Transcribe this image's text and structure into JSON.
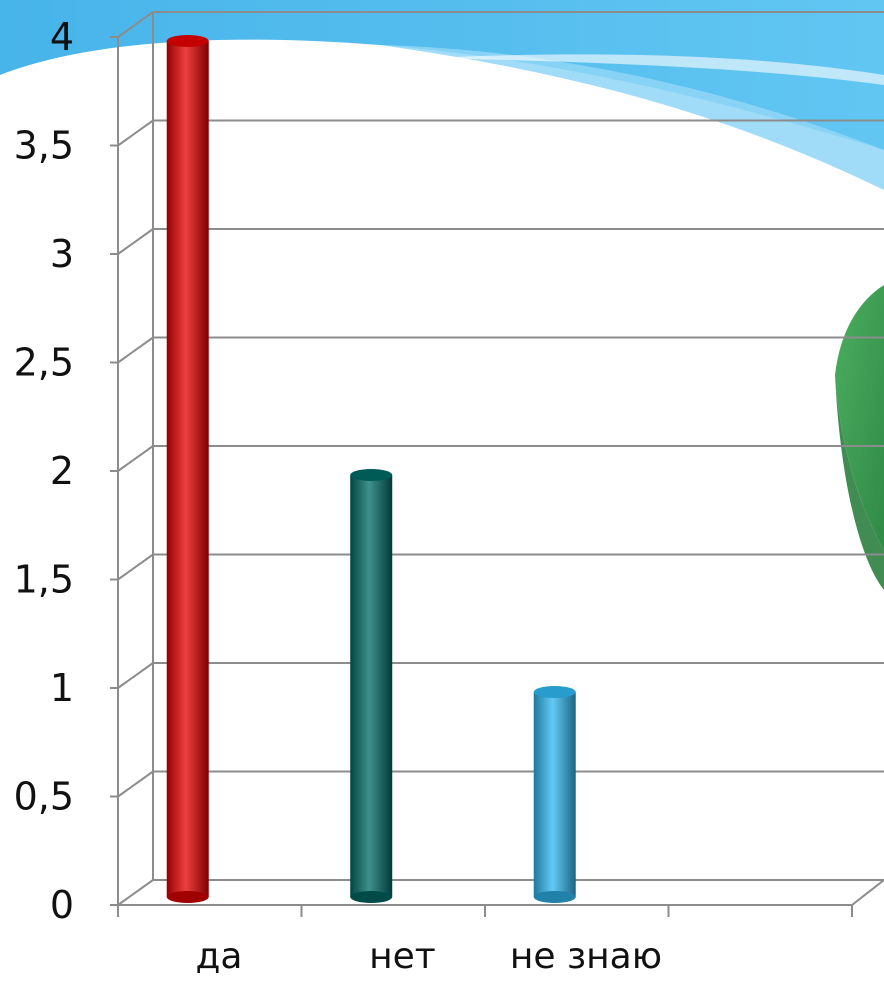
{
  "chart_data": {
    "type": "bar",
    "title": "",
    "xlabel": "",
    "ylabel": "",
    "categories": [
      "да",
      "нет",
      "не знаю"
    ],
    "values": [
      4,
      2,
      1
    ],
    "ylim": [
      0,
      4
    ],
    "y_ticks": [
      "0",
      "0,5",
      "1",
      "1,5",
      "2",
      "2,5",
      "3",
      "3,5",
      "4"
    ],
    "y_tick_values": [
      0,
      0.5,
      1,
      1.5,
      2,
      2.5,
      3,
      3.5,
      4
    ],
    "grid": true,
    "bar_colors": [
      "#e60000",
      "#006b66",
      "#2fb8f0"
    ],
    "accent_colors": {
      "header_wave": "#4fb9ec",
      "pie_fragment": "#3d9e55"
    }
  }
}
